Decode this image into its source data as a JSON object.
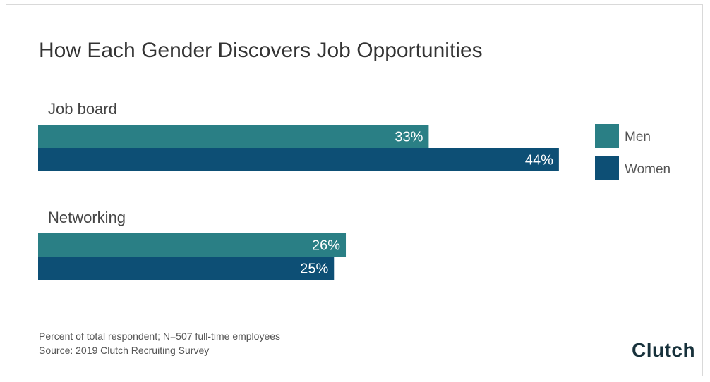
{
  "chart_data": {
    "type": "bar",
    "orientation": "horizontal",
    "title": "How Each Gender Discovers Job Opportunities",
    "categories": [
      "Job board",
      "Networking"
    ],
    "series": [
      {
        "name": "Men",
        "values": [
          33,
          26
        ],
        "labels": [
          "33%",
          "26%"
        ],
        "color": "#2a7f85"
      },
      {
        "name": "Women",
        "values": [
          44,
          25
        ],
        "labels": [
          "44%",
          "25%"
        ],
        "color": "#0d4f75"
      }
    ],
    "xlim": [
      0,
      100
    ],
    "legend": "right",
    "grid": false
  },
  "footnote": {
    "line1": "Percent of total respondent; N=507 full-time employees",
    "line2": "Source: 2019 Clutch Recruiting Survey"
  },
  "logo": {
    "text": "Clutch",
    "accent_color": "#e0493b"
  }
}
